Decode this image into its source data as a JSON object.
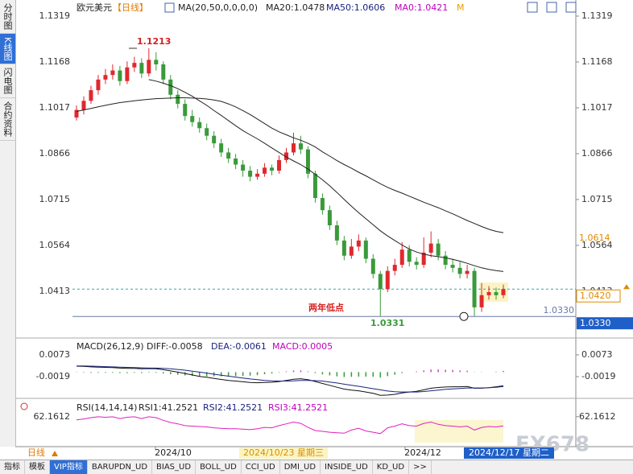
{
  "left_tabs": [
    "分时图",
    "K线图",
    "闪电图",
    "合约资料"
  ],
  "header": {
    "symbol": "欧元美元",
    "period": "【日线】",
    "ma_params": "MA(20,50,0,0,0,0)",
    "ma20": "MA20:1.0478",
    "ma50": "MA50:1.0606",
    "ma0": "MA0:1.0421",
    "m": "M"
  },
  "price": {
    "ylim": [
      1.0259,
      1.1372
    ],
    "yticks": [
      1.1319,
      1.1168,
      1.1017,
      1.0866,
      1.0715,
      1.0564,
      1.0413
    ],
    "candles": [
      [
        1.0985,
        1.1025,
        1.0975,
        1.101
      ],
      [
        1.101,
        1.1055,
        1.0995,
        1.104
      ],
      [
        1.104,
        1.109,
        1.103,
        1.1075
      ],
      [
        1.1075,
        1.1125,
        1.106,
        1.111
      ],
      [
        1.111,
        1.1145,
        1.1095,
        1.1125
      ],
      [
        1.1125,
        1.116,
        1.111,
        1.114
      ],
      [
        1.114,
        1.1155,
        1.109,
        1.1105
      ],
      [
        1.1105,
        1.117,
        1.1095,
        1.115
      ],
      [
        1.115,
        1.1185,
        1.1135,
        1.1165
      ],
      [
        1.1165,
        1.118,
        1.1115,
        1.113
      ],
      [
        1.113,
        1.1213,
        1.112,
        1.1175
      ],
      [
        1.1175,
        1.12,
        1.114,
        1.116
      ],
      [
        1.116,
        1.117,
        1.1095,
        1.111
      ],
      [
        1.111,
        1.1125,
        1.1045,
        1.106
      ],
      [
        1.106,
        1.1075,
        1.1015,
        1.103
      ],
      [
        1.103,
        1.1045,
        1.0975,
        1.099
      ],
      [
        1.099,
        1.101,
        1.0955,
        1.097
      ],
      [
        1.097,
        1.0985,
        1.0935,
        1.095
      ],
      [
        1.095,
        1.0965,
        1.091,
        1.0925
      ],
      [
        1.0925,
        1.094,
        1.0885,
        1.09
      ],
      [
        1.09,
        1.0915,
        1.0855,
        1.087
      ],
      [
        1.087,
        1.0885,
        1.0835,
        1.085
      ],
      [
        1.085,
        1.0865,
        1.0815,
        1.083
      ],
      [
        1.083,
        1.0845,
        1.079,
        1.081
      ],
      [
        1.081,
        1.0825,
        1.0775,
        1.079
      ],
      [
        1.079,
        1.0815,
        1.078,
        1.08
      ],
      [
        1.08,
        1.0835,
        1.079,
        1.082
      ],
      [
        1.082,
        1.083,
        1.0795,
        1.081
      ],
      [
        1.081,
        1.086,
        1.08,
        1.0845
      ],
      [
        1.0845,
        1.0885,
        1.0835,
        1.087
      ],
      [
        1.087,
        1.0935,
        1.086,
        1.09
      ],
      [
        1.09,
        1.0925,
        1.0865,
        1.088
      ],
      [
        1.088,
        1.089,
        1.0785,
        1.08
      ],
      [
        1.08,
        1.081,
        1.0705,
        1.072
      ],
      [
        1.072,
        1.0735,
        1.0665,
        1.068
      ],
      [
        1.068,
        1.0695,
        1.0615,
        1.063
      ],
      [
        1.063,
        1.0645,
        1.0565,
        1.058
      ],
      [
        1.058,
        1.0595,
        1.0515,
        1.053
      ],
      [
        1.053,
        1.0585,
        1.052,
        1.056
      ],
      [
        1.056,
        1.06,
        1.0545,
        1.058
      ],
      [
        1.058,
        1.059,
        1.0505,
        1.052
      ],
      [
        1.052,
        1.0535,
        1.0455,
        1.047
      ],
      [
        1.047,
        1.048,
        1.0331,
        1.042
      ],
      [
        1.042,
        1.0495,
        1.041,
        1.048
      ],
      [
        1.048,
        1.052,
        1.0465,
        1.05
      ],
      [
        1.05,
        1.0575,
        1.049,
        1.055
      ],
      [
        1.055,
        1.0565,
        1.0495,
        1.051
      ],
      [
        1.051,
        1.0525,
        1.0485,
        1.05
      ],
      [
        1.05,
        1.059,
        1.049,
        1.054
      ],
      [
        1.054,
        1.061,
        1.0525,
        1.057
      ],
      [
        1.057,
        1.0585,
        1.0515,
        1.053
      ],
      [
        1.053,
        1.0545,
        1.0485,
        1.05
      ],
      [
        1.05,
        1.052,
        1.0475,
        1.049
      ],
      [
        1.049,
        1.051,
        1.0455,
        1.047
      ],
      [
        1.047,
        1.05,
        1.0455,
        1.048
      ],
      [
        1.048,
        1.049,
        1.033,
        1.036
      ],
      [
        1.036,
        1.044,
        1.0345,
        1.04
      ],
      [
        1.04,
        1.043,
        1.0385,
        1.041
      ],
      [
        1.041,
        1.0425,
        1.0385,
        1.04
      ],
      [
        1.04,
        1.0435,
        1.039,
        1.042
      ]
    ],
    "ma20": [
      null,
      null,
      null,
      null,
      null,
      null,
      null,
      null,
      null,
      null,
      1.111,
      1.1105,
      1.1098,
      1.109,
      1.108,
      1.1068,
      1.1055,
      1.104,
      1.1025,
      1.1008,
      1.0992,
      1.0975,
      1.0958,
      1.0942,
      1.0928,
      1.0915,
      1.09,
      1.0885,
      1.087,
      1.0855,
      1.0842,
      1.083,
      1.0815,
      1.0798,
      1.078,
      1.076,
      1.0738,
      1.0715,
      1.0693,
      1.0672,
      1.0652,
      1.0632,
      1.0612,
      1.0595,
      1.058,
      1.0565,
      1.0552,
      1.0542,
      1.0535,
      1.053,
      1.0527,
      1.0523,
      1.0518,
      1.0512,
      1.0505,
      1.0497,
      1.049,
      1.0485,
      1.0481,
      1.0478
    ],
    "ma50": [
      1.1005,
      1.101,
      1.1015,
      1.102,
      1.1025,
      1.103,
      1.1034,
      1.1037,
      1.104,
      1.1043,
      1.1045,
      1.1047,
      1.1048,
      1.1049,
      1.105,
      1.105,
      1.1049,
      1.1048,
      1.1046,
      1.1043,
      1.1038,
      1.103,
      1.102,
      1.1008,
      1.0995,
      1.098,
      1.0965,
      1.095,
      1.0938,
      1.0928,
      1.0918,
      1.091,
      1.09,
      1.0888,
      1.0872,
      1.0858,
      1.0843,
      1.083,
      1.0818,
      1.0805,
      1.0793,
      1.078,
      1.0767,
      1.0755,
      1.0745,
      1.0736,
      1.0726,
      1.0716,
      1.0706,
      1.0697,
      1.0688,
      1.0678,
      1.0668,
      1.0657,
      1.0646,
      1.0636,
      1.0626,
      1.0617,
      1.061,
      1.0606
    ],
    "high_label": 1.1213,
    "low_note": "两年低点",
    "low_label": 1.0331,
    "support": {
      "value": 1.033,
      "label": "1.0330"
    },
    "ma50_tag": 1.0614,
    "last_price": {
      "value": 1.042,
      "label": "1.0420"
    }
  },
  "macd": {
    "title": "MACD(26,12,9)",
    "diff_label": "DIFF:-0.0058",
    "dea_label": "DEA:-0.0061",
    "macd_label": "MACD:0.0005",
    "ylim": [
      -0.0111,
      0.0134
    ],
    "yticks": [
      0.0073,
      -0.0019
    ],
    "diff": [
      0.0025,
      0.0024,
      0.0022,
      0.0021,
      0.002,
      0.0019,
      0.0017,
      0.0016,
      0.0016,
      0.0014,
      0.0015,
      0.0014,
      0.001,
      0.0005,
      0.0,
      -0.0006,
      -0.0012,
      -0.0018,
      -0.0022,
      -0.0027,
      -0.0031,
      -0.0035,
      -0.0038,
      -0.0041,
      -0.0044,
      -0.0045,
      -0.0044,
      -0.0043,
      -0.004,
      -0.0035,
      -0.003,
      -0.0028,
      -0.0032,
      -0.004,
      -0.0048,
      -0.0056,
      -0.0064,
      -0.0072,
      -0.0076,
      -0.0079,
      -0.0084,
      -0.009,
      -0.0098,
      -0.0097,
      -0.0094,
      -0.0088,
      -0.0084,
      -0.0081,
      -0.0075,
      -0.0068,
      -0.0065,
      -0.0063,
      -0.0062,
      -0.0062,
      -0.0061,
      -0.0068,
      -0.0068,
      -0.0066,
      -0.0062,
      -0.0058
    ],
    "dea": [
      0.0026,
      0.0026,
      0.0025,
      0.0024,
      0.0023,
      0.0022,
      0.0021,
      0.002,
      0.0019,
      0.0018,
      0.0017,
      0.0017,
      0.0016,
      0.0014,
      0.0011,
      0.0008,
      0.0004,
      0.0,
      -0.0004,
      -0.0009,
      -0.0013,
      -0.0017,
      -0.0021,
      -0.0025,
      -0.0029,
      -0.0032,
      -0.0035,
      -0.0037,
      -0.0038,
      -0.0038,
      -0.0037,
      -0.0035,
      -0.0035,
      -0.0036,
      -0.0038,
      -0.0042,
      -0.0046,
      -0.0051,
      -0.0056,
      -0.006,
      -0.0065,
      -0.007,
      -0.0075,
      -0.008,
      -0.0083,
      -0.0084,
      -0.0084,
      -0.0084,
      -0.0082,
      -0.0079,
      -0.0076,
      -0.0073,
      -0.0071,
      -0.0069,
      -0.0067,
      -0.0067,
      -0.0067,
      -0.0066,
      -0.0064,
      -0.0061
    ],
    "hist": [
      -0.0001,
      -0.0002,
      -0.0003,
      -0.0003,
      -0.0003,
      -0.0003,
      -0.0004,
      -0.0004,
      -0.0003,
      -0.0004,
      -0.0002,
      -0.0003,
      -0.0006,
      -0.0009,
      -0.0011,
      -0.0014,
      -0.0016,
      -0.0018,
      -0.0018,
      -0.0018,
      -0.0018,
      -0.0018,
      -0.0017,
      -0.0016,
      -0.0015,
      -0.0013,
      -0.0009,
      -0.0006,
      -0.0002,
      0.0003,
      0.0007,
      0.0007,
      0.0003,
      -0.0004,
      -0.001,
      -0.0014,
      -0.0018,
      -0.0021,
      -0.002,
      -0.0019,
      -0.0019,
      -0.002,
      -0.0023,
      -0.0017,
      -0.0011,
      -0.0004,
      0.0,
      0.0003,
      0.0007,
      0.0011,
      0.0011,
      0.001,
      0.0009,
      0.0007,
      0.0006,
      -0.0001,
      -0.0001,
      0.0,
      0.0002,
      0.0005
    ]
  },
  "rsi": {
    "title": "RSI(14,14,14)",
    "rsi1_label": "RSI1:41.2521",
    "rsi2_label": "RSI2:41.2521",
    "rsi3_label": "RSI3:41.2521",
    "ylim": [
      0,
      100
    ],
    "yticks": [
      62.1612
    ],
    "values": [
      55,
      57,
      60,
      62,
      61,
      62,
      58,
      61,
      62,
      58,
      62,
      60,
      54,
      49,
      46,
      42,
      41,
      40,
      39,
      37,
      36,
      35,
      35,
      34,
      33,
      35,
      38,
      37,
      42,
      46,
      50,
      47,
      38,
      31,
      29,
      27,
      26,
      25,
      32,
      36,
      30,
      27,
      24,
      37,
      41,
      46,
      42,
      41,
      47,
      50,
      45,
      42,
      41,
      39,
      41,
      32,
      38,
      40,
      39,
      41.2521
    ]
  },
  "time_axis": {
    "period": "日线",
    "labels": [
      "2024/10",
      "2024/10/23 星期三",
      "2024/12",
      "2024/12/17 星期二"
    ]
  },
  "toolbar": [
    "指标",
    "模板",
    "VIP指标",
    "BARUPDN_UD",
    "BIAS_UD",
    "BOLL_UD",
    "CCI_UD",
    "DMI_UD",
    "INSIDE_UD",
    "KD_UD",
    ">>"
  ],
  "watermark": "FX678"
}
